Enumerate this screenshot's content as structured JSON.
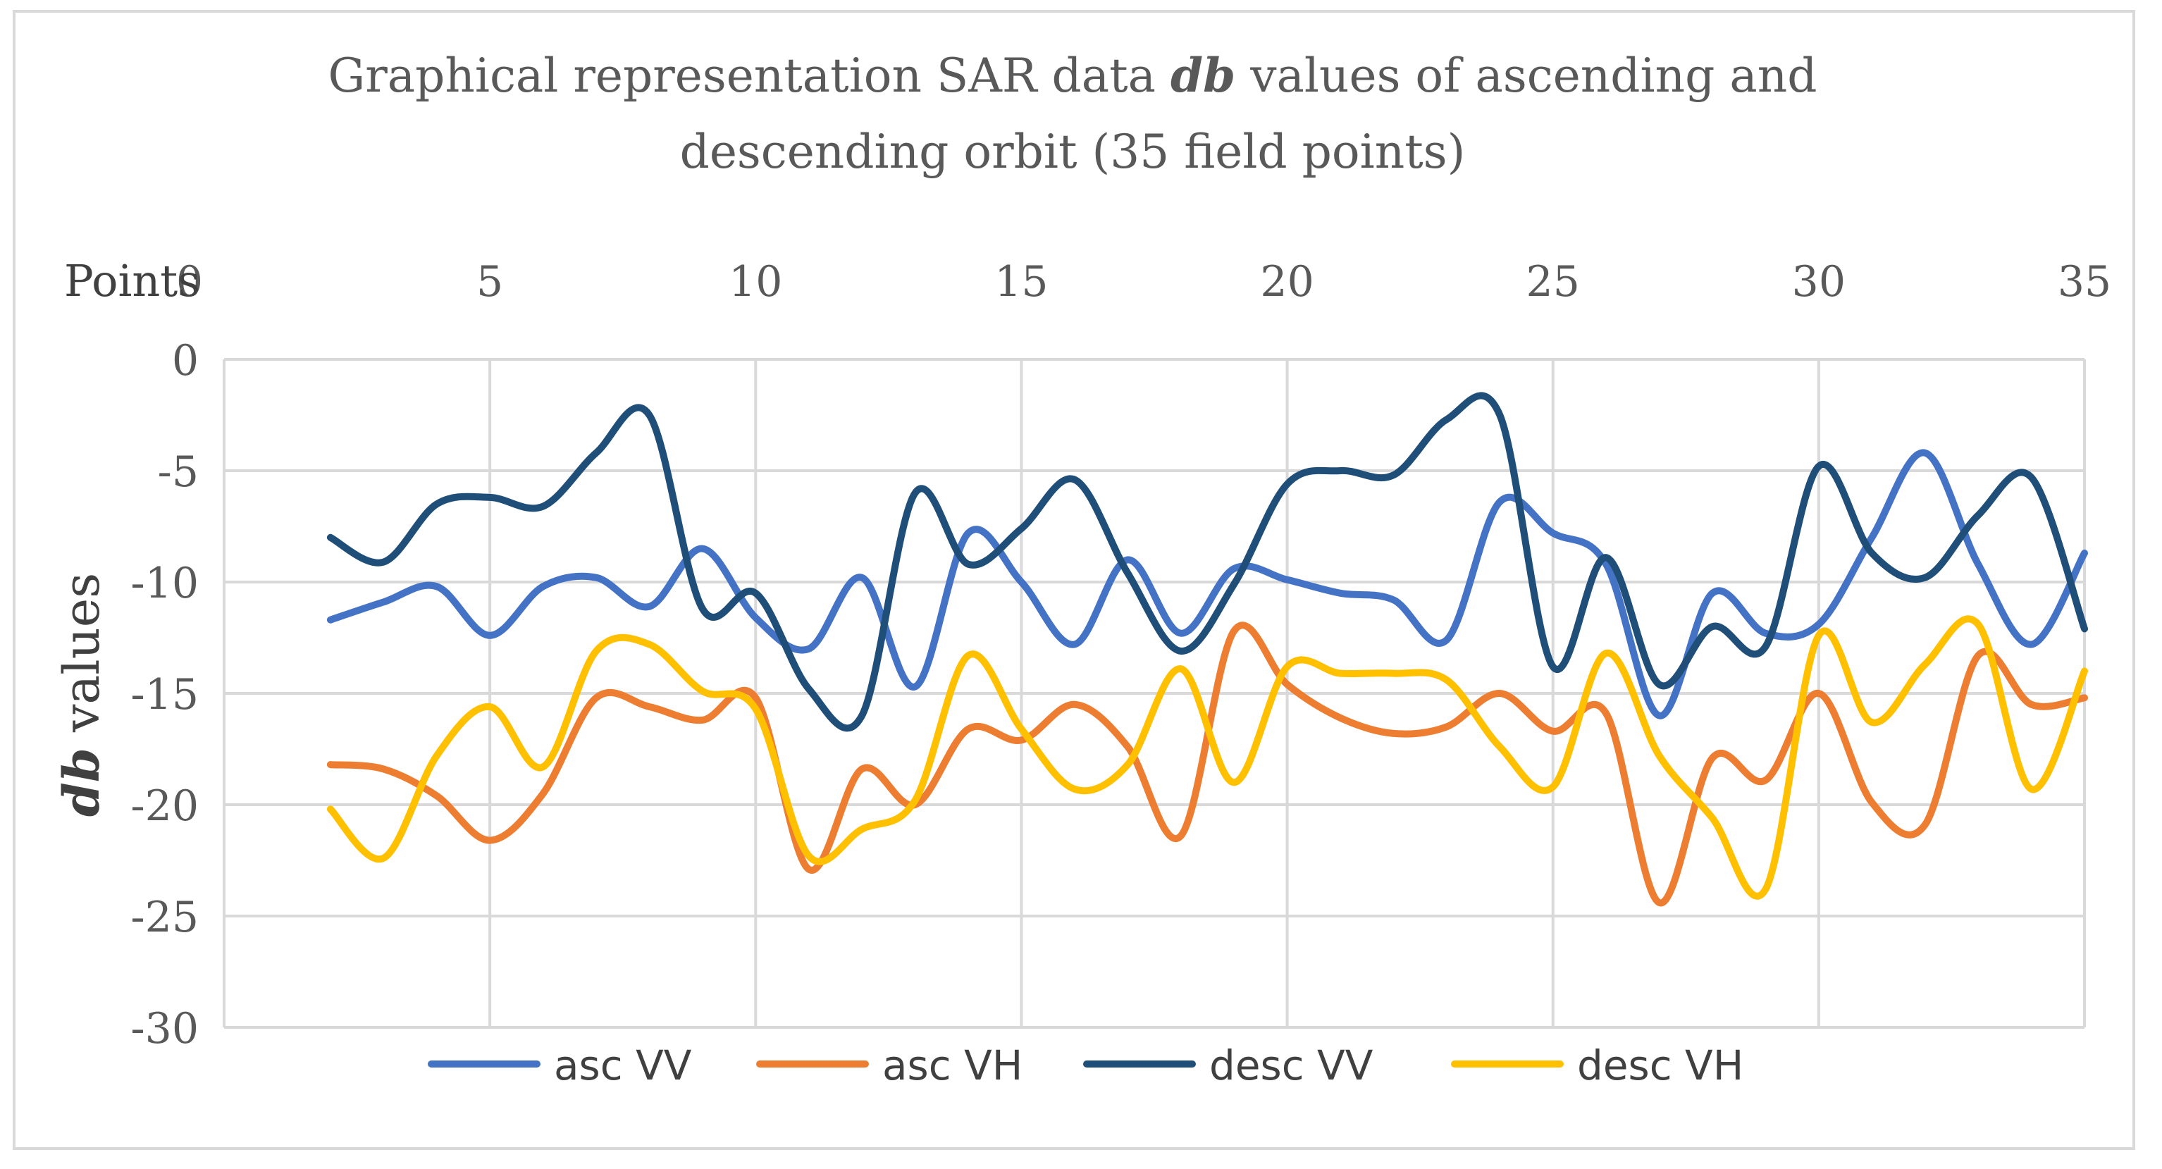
{
  "chart_data": {
    "type": "line",
    "title_line1_prefix": "Graphical representation SAR data ",
    "title_emph": "db",
    "title_line1_suffix": " values of ascending and",
    "title_line2": "descending orbit (35 field points)",
    "xlabel": "Points",
    "ylabel_emph": "db",
    "ylabel_rest": " values",
    "x_ticks": [
      "0",
      "5",
      "10",
      "15",
      "20",
      "25",
      "30",
      "35"
    ],
    "x_tick_values": [
      0,
      5,
      10,
      15,
      20,
      25,
      30,
      35
    ],
    "y_ticks": [
      "0",
      "-5",
      "-10",
      "-15",
      "-20",
      "-25",
      "-30"
    ],
    "y_tick_values": [
      0,
      -5,
      -10,
      -15,
      -20,
      -25,
      -30
    ],
    "xlim": [
      0,
      35
    ],
    "ylim": [
      -30,
      0
    ],
    "x_axis_position": "top",
    "grid": true,
    "legend_position": "bottom",
    "x": [
      2,
      3,
      4,
      5,
      6,
      7,
      8,
      9,
      10,
      11,
      12,
      13,
      14,
      15,
      16,
      17,
      18,
      19,
      20,
      21,
      22,
      23,
      24,
      25,
      26,
      27,
      28,
      29,
      30,
      31,
      32,
      33,
      34,
      35
    ],
    "series": [
      {
        "name": "asc VV",
        "color": "#4472c4",
        "values": [
          -11.7,
          -10.9,
          -10.2,
          -12.4,
          -10.2,
          -9.8,
          -11.1,
          -8.5,
          -11.6,
          -13.0,
          -9.8,
          -14.7,
          -7.8,
          -10.0,
          -12.8,
          -9.0,
          -12.3,
          -9.4,
          -9.9,
          -10.5,
          -10.8,
          -12.6,
          -6.4,
          -7.8,
          -9.2,
          -16.0,
          -10.5,
          -12.3,
          -11.9,
          -8.0,
          -4.2,
          -9.2,
          -12.8,
          -8.7
        ]
      },
      {
        "name": "asc VH",
        "color": "#ed7d31",
        "values": [
          -18.2,
          -18.4,
          -19.6,
          -21.6,
          -19.5,
          -15.2,
          -15.6,
          -16.2,
          -15.2,
          -22.9,
          -18.4,
          -20.0,
          -16.6,
          -17.1,
          -15.5,
          -17.4,
          -21.4,
          -12.2,
          -14.6,
          -16.1,
          -16.8,
          -16.5,
          -15.0,
          -16.7,
          -15.9,
          -24.4,
          -17.9,
          -18.9,
          -15.0,
          -19.9,
          -20.9,
          -13.3,
          -15.5,
          -15.2
        ]
      },
      {
        "name": "desc VV",
        "color": "#1f4e79",
        "values": [
          -8.0,
          -9.1,
          -6.5,
          -6.2,
          -6.6,
          -4.2,
          -2.5,
          -11.2,
          -10.5,
          -14.8,
          -16.0,
          -6.0,
          -9.2,
          -7.6,
          -5.4,
          -9.6,
          -13.1,
          -10.1,
          -5.6,
          -5.0,
          -5.2,
          -2.7,
          -2.5,
          -13.8,
          -8.9,
          -14.6,
          -12.0,
          -12.9,
          -4.8,
          -8.7,
          -9.8,
          -7.0,
          -5.3,
          -12.1
        ]
      },
      {
        "name": "desc VH",
        "color": "#ffc000",
        "values": [
          -20.2,
          -22.4,
          -17.8,
          -15.6,
          -18.3,
          -13.1,
          -12.8,
          -14.9,
          -15.7,
          -22.3,
          -21.1,
          -19.8,
          -13.3,
          -16.6,
          -19.3,
          -18.2,
          -13.9,
          -19.0,
          -13.8,
          -14.1,
          -14.1,
          -14.4,
          -17.4,
          -19.2,
          -13.2,
          -17.8,
          -20.6,
          -23.8,
          -12.4,
          -16.3,
          -13.7,
          -11.9,
          -19.3,
          -14.0
        ]
      }
    ]
  }
}
